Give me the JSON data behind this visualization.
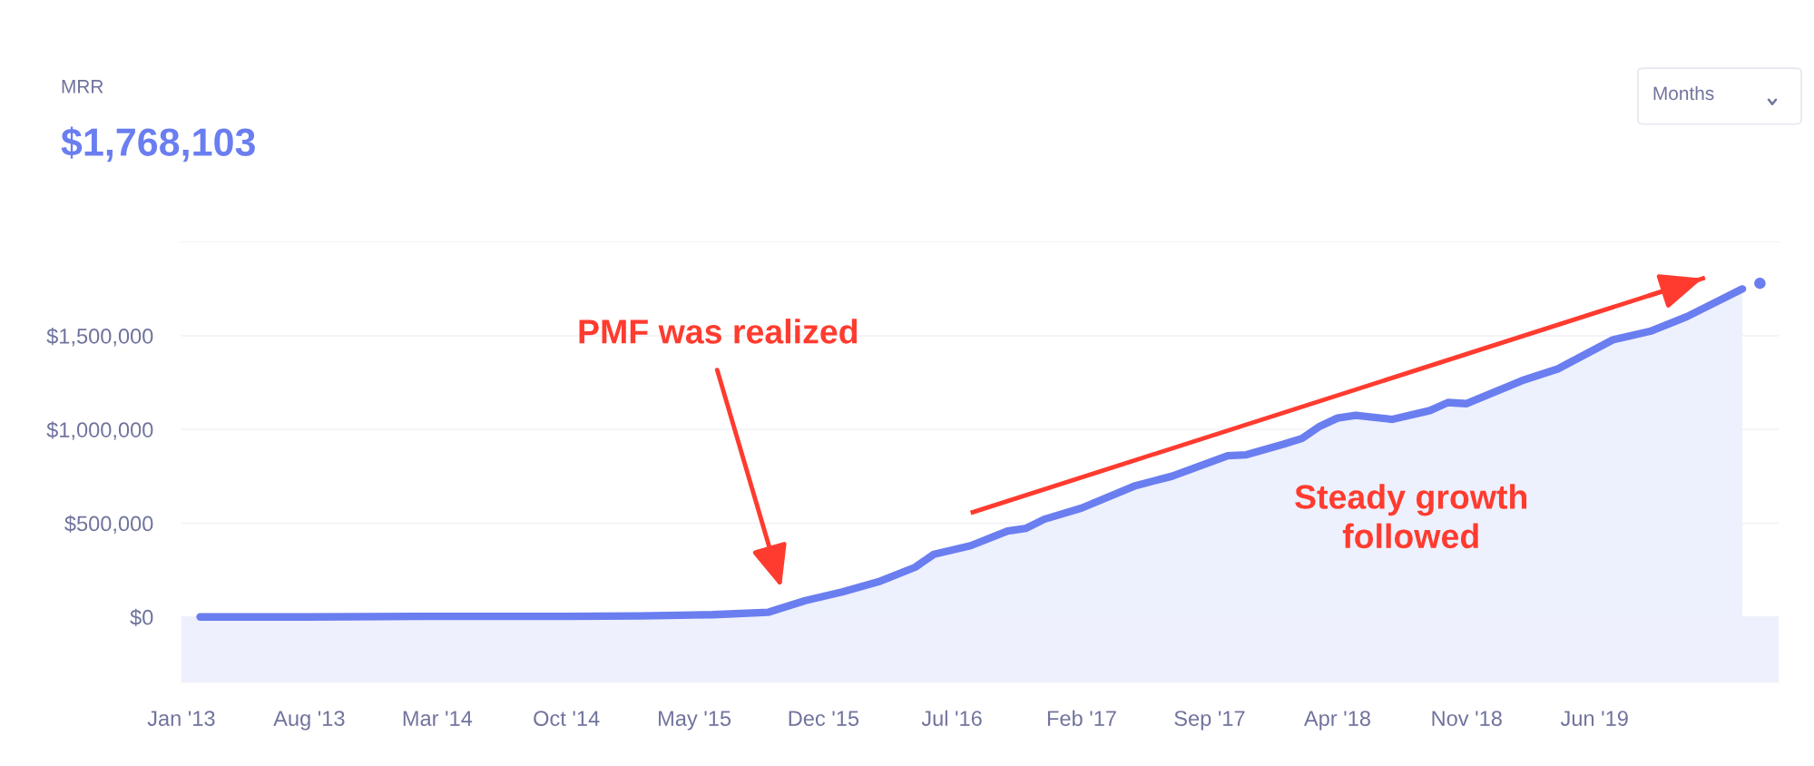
{
  "chart_data": {
    "type": "area",
    "title": "MRR",
    "subtitle": "$1,768,103",
    "series": [
      {
        "color": "#6a7ef0",
        "x": [
          "2013-02",
          "2013-08",
          "2014-02",
          "2014-10",
          "2015-02",
          "2015-06",
          "2015-09",
          "2015-11",
          "2016-01",
          "2016-03",
          "2016-05",
          "2016-06",
          "2016-08",
          "2016-10",
          "2016-11",
          "2016-12",
          "2017-02",
          "2017-05",
          "2017-07",
          "2017-10",
          "2017-11",
          "2018-01",
          "2018-02",
          "2018-03",
          "2018-04",
          "2018-05",
          "2018-07",
          "2018-09",
          "2018-10",
          "2018-11",
          "2019-02",
          "2019-04",
          "2019-07",
          "2019-09",
          "2019-11",
          "2020-02"
        ],
        "values": [
          0,
          0,
          3000,
          3000,
          5000,
          12000,
          25000,
          87000,
          133000,
          187000,
          265000,
          334000,
          380000,
          458000,
          473000,
          521000,
          581000,
          700000,
          751000,
          860000,
          865000,
          921000,
          952000,
          1014000,
          1061000,
          1076000,
          1054000,
          1101000,
          1144000,
          1138000,
          1261000,
          1323000,
          1478000,
          1524000,
          1602000,
          1750000
        ]
      },
      {
        "type": "scatter",
        "color": "#6a7ef0",
        "marker": "circle",
        "x": [
          "2020-03"
        ],
        "values": [
          1780000
        ]
      },
      {
        "type": "line",
        "color": "#ff3b2f",
        "x": [
          "2016-08",
          "2019-12"
        ],
        "values": [
          555000,
          1810000
        ]
      }
    ],
    "xlim": [
      "2013-01",
      "2020-04"
    ],
    "xticks": [
      {
        "value": "2013-01",
        "label": "Jan '13"
      },
      {
        "value": "2013-08",
        "label": "Aug '13"
      },
      {
        "value": "2014-03",
        "label": "Mar '14"
      },
      {
        "value": "2014-10",
        "label": "Oct '14"
      },
      {
        "value": "2015-05",
        "label": "May '15"
      },
      {
        "value": "2015-12",
        "label": "Dec '15"
      },
      {
        "value": "2016-07",
        "label": "Jul '16"
      },
      {
        "value": "2017-02",
        "label": "Feb '17"
      },
      {
        "value": "2017-09",
        "label": "Sep '17"
      },
      {
        "value": "2018-04",
        "label": "Apr '18"
      },
      {
        "value": "2018-11",
        "label": "Nov '18"
      },
      {
        "value": "2019-06",
        "label": "Jun '19"
      }
    ],
    "ylim": [
      -350000,
      2000000
    ],
    "yticks": [
      {
        "value": 0,
        "label": "$0"
      },
      {
        "value": 500000,
        "label": "$500,000"
      },
      {
        "value": 1000000,
        "label": "$1,000,000"
      },
      {
        "value": 1500000,
        "label": "$1,500,000"
      }
    ],
    "bands": [
      {
        "axis": "y",
        "from": -350000,
        "to": 0,
        "color": "#eef0fd"
      }
    ],
    "grid": "y",
    "legend": false,
    "line_style": "solid",
    "annotations": [
      "PMF was realized",
      "Steady growth\nfollowed",
      "Months"
    ]
  }
}
